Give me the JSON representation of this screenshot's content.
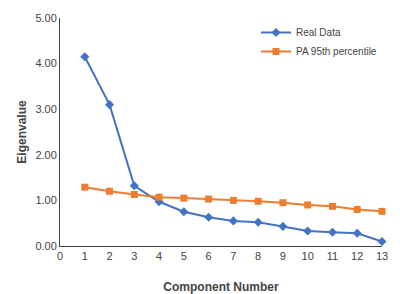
{
  "chart_data": {
    "type": "line",
    "xlabel": "Component Number",
    "ylabel": "Eigenvalue",
    "x": [
      1,
      2,
      3,
      4,
      5,
      6,
      7,
      8,
      9,
      10,
      11,
      12,
      13
    ],
    "series": [
      {
        "name": "Real Data",
        "color": "#4472C4",
        "marker": "diamond",
        "values": [
          4.15,
          3.1,
          1.32,
          0.97,
          0.75,
          0.63,
          0.55,
          0.52,
          0.43,
          0.33,
          0.3,
          0.28,
          0.1
        ]
      },
      {
        "name": "PA 95th percentile",
        "color": "#ED7D31",
        "marker": "square",
        "values": [
          1.29,
          1.2,
          1.13,
          1.07,
          1.05,
          1.03,
          1.0,
          0.98,
          0.95,
          0.9,
          0.87,
          0.8,
          0.76
        ]
      }
    ],
    "xlim": [
      0,
      13
    ],
    "xticks": [
      0,
      1,
      2,
      3,
      4,
      5,
      6,
      7,
      8,
      9,
      10,
      11,
      12,
      13
    ],
    "ylim": [
      0.0,
      5.0
    ],
    "yticks": [
      {
        "value": 0.0,
        "label": "0.00"
      },
      {
        "value": 1.0,
        "label": "1.00"
      },
      {
        "value": 2.0,
        "label": "2.00"
      },
      {
        "value": 3.0,
        "label": "3.00"
      },
      {
        "value": 4.0,
        "label": "4.00"
      },
      {
        "value": 5.0,
        "label": "5.00"
      }
    ],
    "grid": false,
    "legend": "upper right"
  }
}
